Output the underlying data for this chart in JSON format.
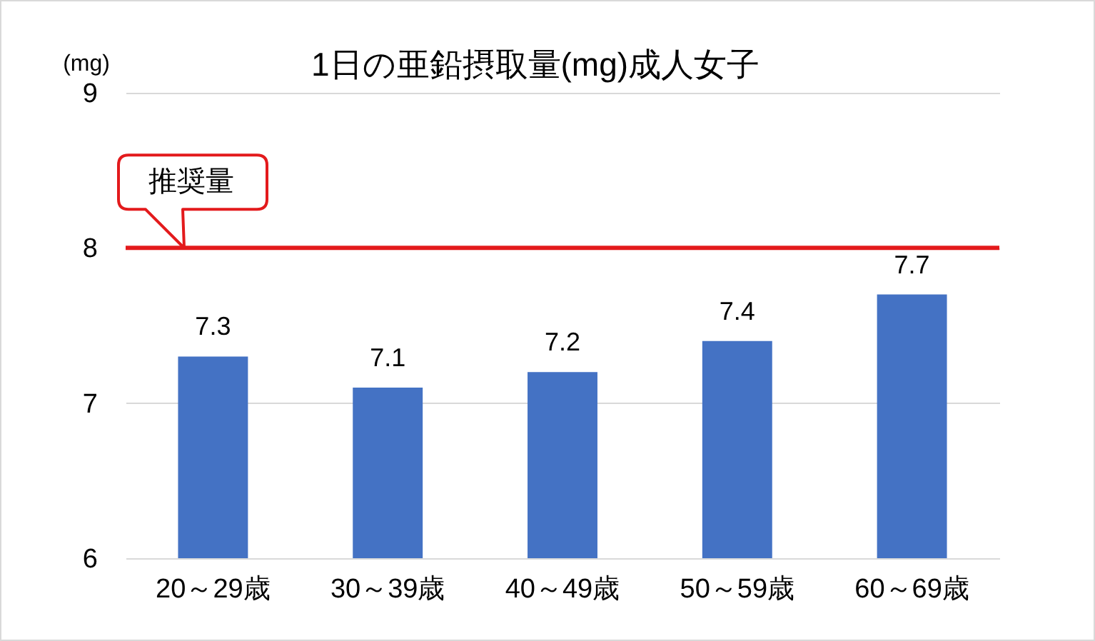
{
  "chart_data": {
    "type": "bar",
    "title": "1日の亜鉛摂取量(mg)成人女子",
    "ylabel": "(mg)",
    "categories": [
      "20～29歳",
      "30～39歳",
      "40～49歳",
      "50～59歳",
      "60～69歳"
    ],
    "values": [
      7.3,
      7.1,
      7.2,
      7.4,
      7.7
    ],
    "color": "#4472c4",
    "ylim": [
      6,
      9
    ],
    "yticks": [
      6,
      7,
      8,
      9
    ],
    "grid": "y",
    "data_labels": true,
    "ref_lines": [
      {
        "axis": "y",
        "value": 8,
        "label": "推奨量",
        "color": "#e31a1c"
      }
    ]
  }
}
